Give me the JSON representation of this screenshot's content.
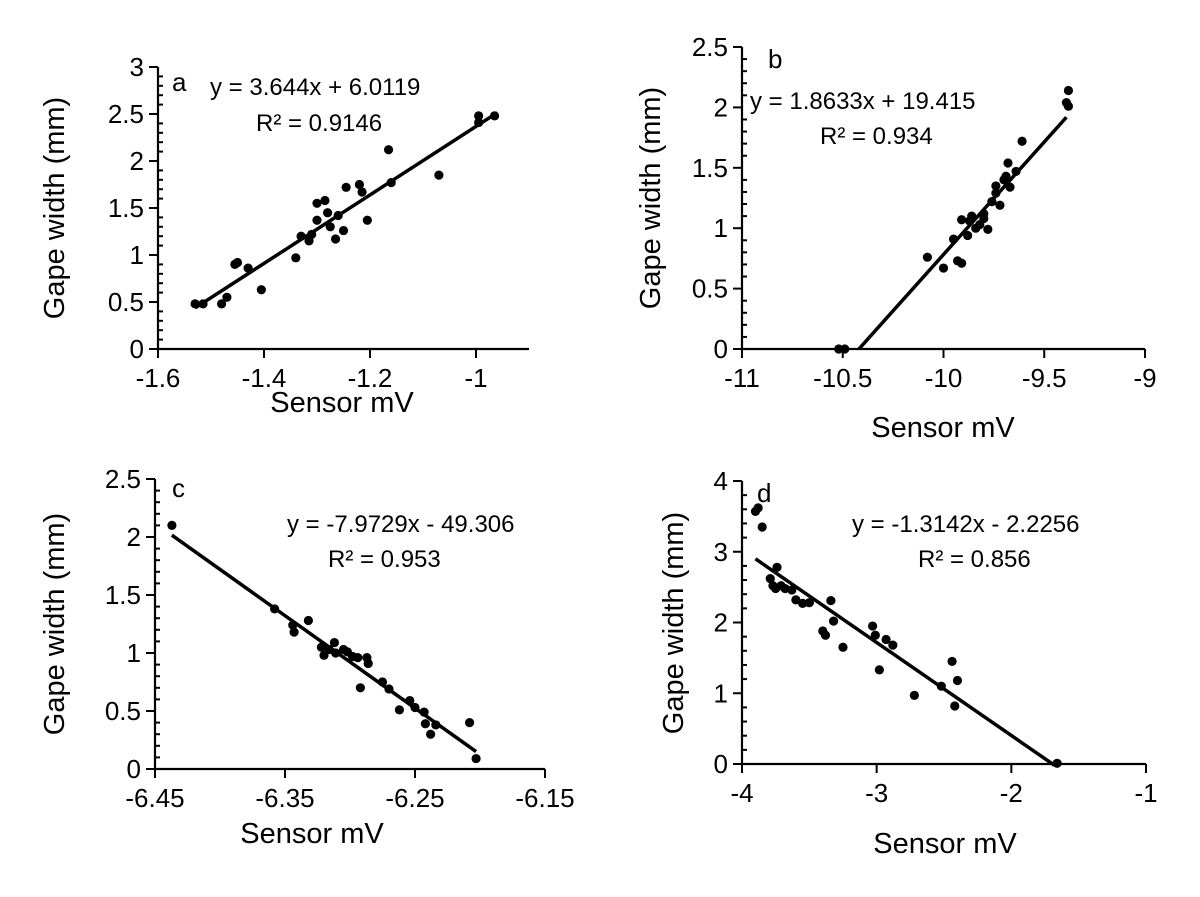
{
  "chart_data": [
    {
      "panel": "a",
      "type": "scatter",
      "xlabel": "Sensor mV",
      "ylabel": "Gape width (mm)",
      "xlim": [
        -1.6,
        -0.9
      ],
      "ylim": [
        0,
        3
      ],
      "xticks": [
        -1.6,
        -1.4,
        -1.2,
        -1.0
      ],
      "xtick_labels": [
        "-1.6",
        "-1.4",
        "-1.2",
        "-1"
      ],
      "yticks": [
        0,
        0.5,
        1,
        1.5,
        2,
        2.5,
        3
      ],
      "ytick_labels": [
        "0",
        "0.5",
        "1",
        "1.5",
        "2",
        "2.5",
        "3"
      ],
      "y_minor_step": 0.1,
      "trendline": {
        "slope": 3.644,
        "intercept": 6.0119,
        "x_range": [
          -1.53,
          -0.96
        ]
      },
      "equation": "y = 3.644x + 6.0119",
      "r2": "R² = 0.9146",
      "points": [
        [
          -1.53,
          0.48
        ],
        [
          -1.515,
          0.48
        ],
        [
          -1.48,
          0.48
        ],
        [
          -1.47,
          0.55
        ],
        [
          -1.455,
          0.9
        ],
        [
          -1.45,
          0.92
        ],
        [
          -1.43,
          0.86
        ],
        [
          -1.405,
          0.63
        ],
        [
          -1.34,
          0.97
        ],
        [
          -1.33,
          1.2
        ],
        [
          -1.315,
          1.15
        ],
        [
          -1.31,
          1.22
        ],
        [
          -1.3,
          1.37
        ],
        [
          -1.3,
          1.55
        ],
        [
          -1.285,
          1.58
        ],
        [
          -1.28,
          1.45
        ],
        [
          -1.275,
          1.3
        ],
        [
          -1.265,
          1.17
        ],
        [
          -1.26,
          1.42
        ],
        [
          -1.25,
          1.26
        ],
        [
          -1.245,
          1.72
        ],
        [
          -1.22,
          1.75
        ],
        [
          -1.215,
          1.67
        ],
        [
          -1.205,
          1.37
        ],
        [
          -1.165,
          2.12
        ],
        [
          -1.16,
          1.77
        ],
        [
          -1.07,
          1.85
        ],
        [
          -0.995,
          2.48
        ],
        [
          -0.995,
          2.41
        ],
        [
          -0.965,
          2.48
        ]
      ]
    },
    {
      "panel": "b",
      "type": "scatter",
      "xlabel": "Sensor mV",
      "ylabel": "Gape width (mm)",
      "xlim": [
        -11,
        -9
      ],
      "ylim": [
        0,
        2.5
      ],
      "xticks": [
        -11,
        -10.5,
        -10,
        -9.5,
        -9
      ],
      "xtick_labels": [
        "-11",
        "-10.5",
        "-10",
        "-9.5",
        "-9"
      ],
      "yticks": [
        0,
        0.5,
        1,
        1.5,
        2,
        2.5
      ],
      "ytick_labels": [
        "0",
        "0.5",
        "1",
        "1.5",
        "2",
        "2.5"
      ],
      "y_minor_step": 0.1,
      "trendline": {
        "slope": 1.8633,
        "intercept": 19.415,
        "x_range": [
          -10.42,
          -9.39
        ]
      },
      "equation": "y = 1.8633x + 19.415",
      "r2": "R² = 0.934",
      "points": [
        [
          -10.52,
          0.0
        ],
        [
          -10.49,
          0.0
        ],
        [
          -10.08,
          0.76
        ],
        [
          -10.0,
          0.67
        ],
        [
          -9.95,
          0.91
        ],
        [
          -9.93,
          0.73
        ],
        [
          -9.91,
          0.71
        ],
        [
          -9.91,
          1.07
        ],
        [
          -9.88,
          0.94
        ],
        [
          -9.87,
          1.06
        ],
        [
          -9.86,
          1.1
        ],
        [
          -9.84,
          1.0
        ],
        [
          -9.82,
          1.03
        ],
        [
          -9.8,
          1.12
        ],
        [
          -9.8,
          1.08
        ],
        [
          -9.78,
          0.99
        ],
        [
          -9.76,
          1.22
        ],
        [
          -9.74,
          1.29
        ],
        [
          -9.74,
          1.35
        ],
        [
          -9.72,
          1.19
        ],
        [
          -9.7,
          1.4
        ],
        [
          -9.69,
          1.43
        ],
        [
          -9.68,
          1.54
        ],
        [
          -9.67,
          1.34
        ],
        [
          -9.64,
          1.47
        ],
        [
          -9.61,
          1.72
        ],
        [
          -9.39,
          2.04
        ],
        [
          -9.38,
          2.14
        ],
        [
          -9.38,
          2.01
        ]
      ]
    },
    {
      "panel": "c",
      "type": "scatter",
      "xlabel": "Sensor mV",
      "ylabel": "Gape width (mm)",
      "xlim": [
        -6.45,
        -6.15
      ],
      "ylim": [
        0,
        2.5
      ],
      "xticks": [
        -6.45,
        -6.35,
        -6.25,
        -6.15
      ],
      "xtick_labels": [
        "-6.45",
        "-6.35",
        "-6.25",
        "-6.15"
      ],
      "yticks": [
        0,
        0.5,
        1,
        1.5,
        2,
        2.5
      ],
      "ytick_labels": [
        "0",
        "0.5",
        "1",
        "1.5",
        "2",
        "2.5"
      ],
      "y_minor_step": 0.1,
      "trendline": {
        "slope": -7.9729,
        "intercept": -49.306,
        "x_range": [
          -6.437,
          -6.203
        ]
      },
      "equation": "y = -7.9729x - 49.306",
      "r2": "R² = 0.953",
      "points": [
        [
          -6.437,
          2.1
        ],
        [
          -6.358,
          1.38
        ],
        [
          -6.344,
          1.24
        ],
        [
          -6.343,
          1.18
        ],
        [
          -6.332,
          1.28
        ],
        [
          -6.322,
          1.05
        ],
        [
          -6.32,
          0.98
        ],
        [
          -6.316,
          1.03
        ],
        [
          -6.312,
          1.09
        ],
        [
          -6.311,
          1.0
        ],
        [
          -6.305,
          1.03
        ],
        [
          -6.302,
          1.01
        ],
        [
          -6.298,
          0.97
        ],
        [
          -6.294,
          0.96
        ],
        [
          -6.292,
          0.7
        ],
        [
          -6.287,
          0.96
        ],
        [
          -6.286,
          0.91
        ],
        [
          -6.275,
          0.75
        ],
        [
          -6.27,
          0.69
        ],
        [
          -6.262,
          0.51
        ],
        [
          -6.254,
          0.59
        ],
        [
          -6.25,
          0.53
        ],
        [
          -6.243,
          0.49
        ],
        [
          -6.242,
          0.39
        ],
        [
          -6.238,
          0.3
        ],
        [
          -6.234,
          0.38
        ],
        [
          -6.208,
          0.4
        ],
        [
          -6.203,
          0.09
        ]
      ]
    },
    {
      "panel": "d",
      "type": "scatter",
      "xlabel": "Sensor mV",
      "ylabel": "Gape width (mm)",
      "xlim": [
        -4,
        -1
      ],
      "ylim": [
        0,
        4
      ],
      "xticks": [
        -4,
        -3,
        -2,
        -1
      ],
      "xtick_labels": [
        "-4",
        "-3",
        "-2",
        "-1"
      ],
      "yticks": [
        0,
        1,
        2,
        3,
        4
      ],
      "ytick_labels": [
        "0",
        "1",
        "2",
        "3",
        "4"
      ],
      "y_minor_step": 0.2,
      "trendline": {
        "slope": -1.3142,
        "intercept": -2.2256,
        "x_range": [
          -3.9,
          -1.68
        ]
      },
      "equation": "y = -1.3142x - 2.2256",
      "r2": "R² = 0.856",
      "points": [
        [
          -3.9,
          3.57
        ],
        [
          -3.88,
          3.62
        ],
        [
          -3.85,
          3.35
        ],
        [
          -3.79,
          2.62
        ],
        [
          -3.77,
          2.52
        ],
        [
          -3.75,
          2.48
        ],
        [
          -3.74,
          2.78
        ],
        [
          -3.71,
          2.52
        ],
        [
          -3.68,
          2.48
        ],
        [
          -3.63,
          2.46
        ],
        [
          -3.6,
          2.32
        ],
        [
          -3.55,
          2.27
        ],
        [
          -3.5,
          2.28
        ],
        [
          -3.4,
          1.88
        ],
        [
          -3.38,
          1.82
        ],
        [
          -3.34,
          2.31
        ],
        [
          -3.32,
          2.02
        ],
        [
          -3.25,
          1.65
        ],
        [
          -3.03,
          1.95
        ],
        [
          -3.01,
          1.82
        ],
        [
          -2.98,
          1.33
        ],
        [
          -2.93,
          1.76
        ],
        [
          -2.88,
          1.68
        ],
        [
          -2.72,
          0.97
        ],
        [
          -2.52,
          1.1
        ],
        [
          -2.44,
          1.45
        ],
        [
          -2.42,
          0.82
        ],
        [
          -2.4,
          1.18
        ],
        [
          -1.66,
          0.01
        ]
      ]
    }
  ]
}
